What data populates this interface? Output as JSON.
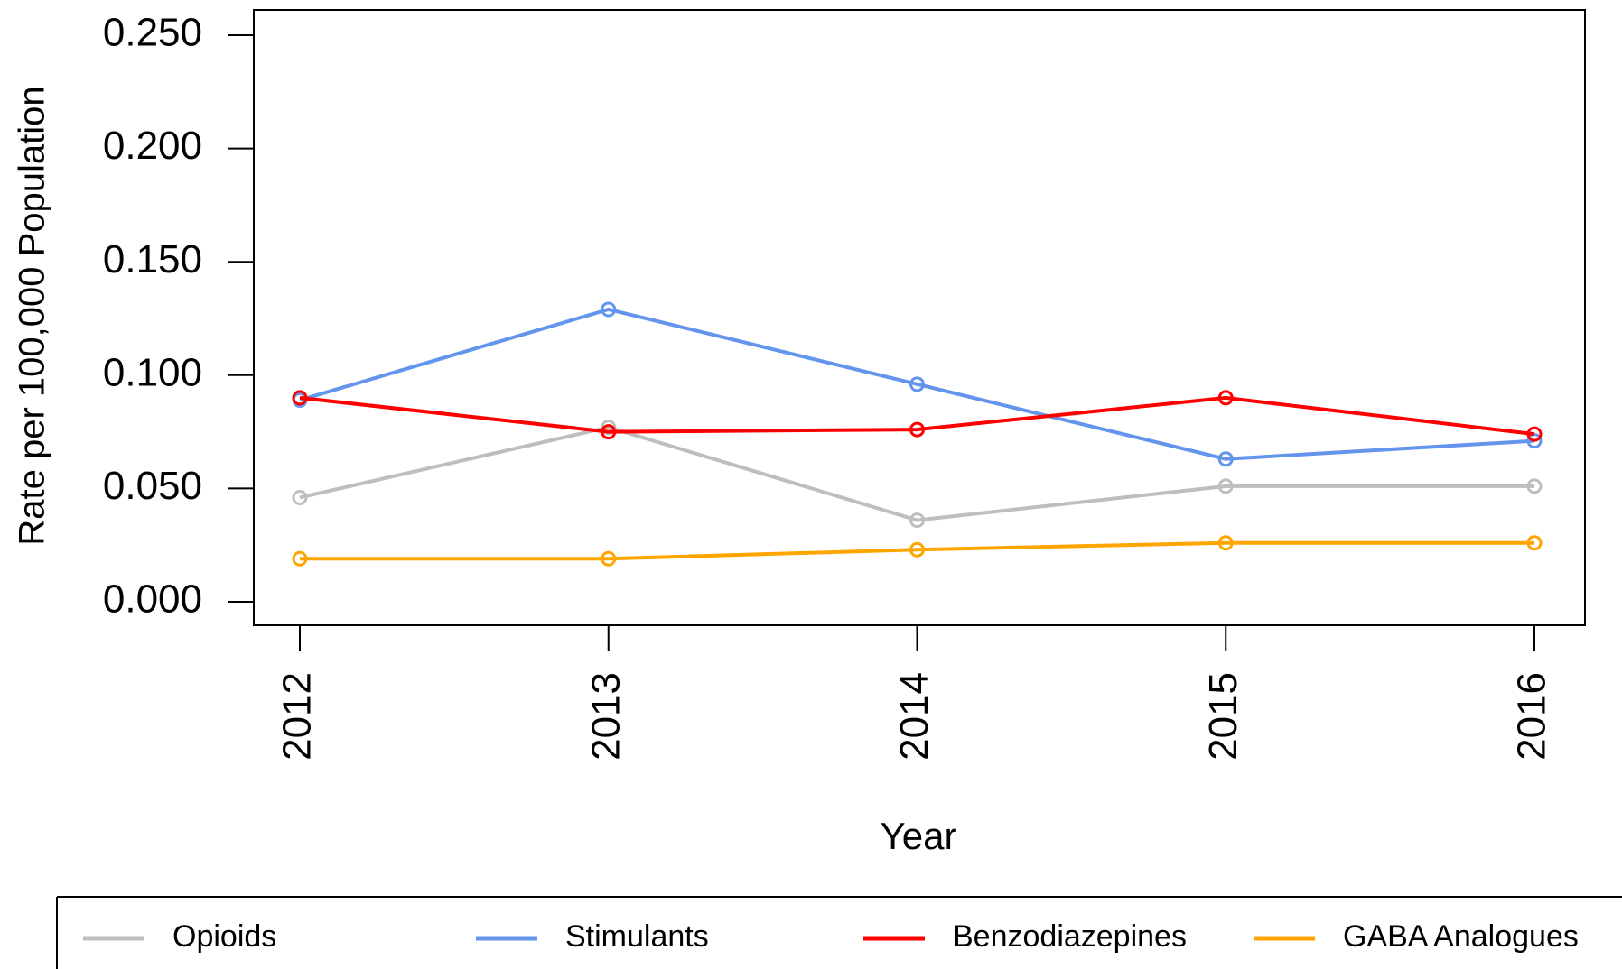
{
  "chart_data": {
    "type": "line",
    "x_label": "Year",
    "y_label": "Rate per 100,000 Population",
    "categories": [
      "2012",
      "2013",
      "2014",
      "2015",
      "2016"
    ],
    "series": [
      {
        "name": "Opioids",
        "color": "#bebebe",
        "values": [
          0.046,
          0.077,
          0.036,
          0.051,
          0.051
        ]
      },
      {
        "name": "Stimulants",
        "color": "#6495ed",
        "values": [
          0.089,
          0.129,
          0.096,
          0.063,
          0.071
        ]
      },
      {
        "name": "Benzodiazepines",
        "color": "#ff0000",
        "values": [
          0.09,
          0.075,
          0.076,
          0.09,
          0.074
        ]
      },
      {
        "name": "GABA Analogues",
        "color": "#ffa500",
        "values": [
          0.019,
          0.019,
          0.023,
          0.026,
          0.026
        ]
      }
    ],
    "ylim": [
      0,
      0.25
    ],
    "yticks": [
      {
        "value": 0,
        "label": "0.000"
      },
      {
        "value": 0.05,
        "label": "0.050"
      },
      {
        "value": 0.1,
        "label": "0.100"
      },
      {
        "value": 0.15,
        "label": "0.150"
      },
      {
        "value": 0.2,
        "label": "0.200"
      },
      {
        "value": 0.25,
        "label": "0.250"
      }
    ],
    "legend": "bottom"
  }
}
